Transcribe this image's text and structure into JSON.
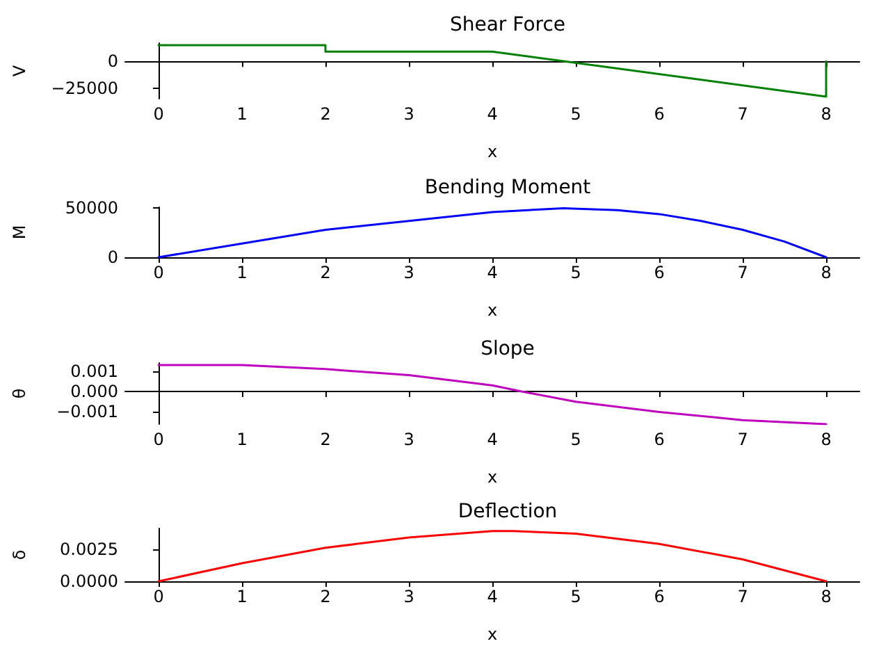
{
  "chart_data": [
    {
      "type": "line",
      "title": "Shear Force",
      "xlabel": "x",
      "ylabel": "V",
      "x": [
        0,
        2,
        2,
        4,
        8,
        8
      ],
      "series": [
        {
          "color": "#008000",
          "values": [
            15000,
            15000,
            9000,
            9000,
            -33000,
            0
          ]
        }
      ],
      "xlim": [
        -0.4,
        8.4
      ],
      "xticks": [
        0,
        1,
        2,
        3,
        4,
        5,
        6,
        7,
        8
      ],
      "ylim": [
        -35000,
        17000
      ],
      "yticks": [
        {
          "value": -25000,
          "label": "−25000"
        },
        0
      ],
      "grid": false
    },
    {
      "type": "line",
      "title": "Bending Moment",
      "xlabel": "x",
      "ylabel": "M",
      "x": [
        0,
        1,
        2,
        3,
        4,
        4.85,
        5.5,
        6,
        6.5,
        7,
        7.5,
        8
      ],
      "series": [
        {
          "color": "#0000ff",
          "values": [
            0,
            14000,
            28000,
            37000,
            46000,
            50000,
            48000,
            44000,
            37000,
            28000,
            16000,
            0
          ]
        }
      ],
      "xlim": [
        -0.4,
        8.4
      ],
      "xticks": [
        0,
        1,
        2,
        3,
        4,
        5,
        6,
        7,
        8
      ],
      "ylim": [
        0,
        51000
      ],
      "yticks": [
        0,
        50000
      ],
      "grid": false
    },
    {
      "type": "line",
      "title": "Slope",
      "xlabel": "x",
      "ylabel": "θ",
      "x": [
        0,
        1,
        2,
        3,
        4,
        4.35,
        5,
        6,
        7,
        8
      ],
      "series": [
        {
          "color": "#bf00bf",
          "values": [
            0.0013,
            0.0013,
            0.0011,
            0.0008,
            0.0003,
            0,
            -0.0005,
            -0.001,
            -0.0014,
            -0.0016
          ]
        }
      ],
      "xlim": [
        -0.4,
        8.4
      ],
      "xticks": [
        0,
        1,
        2,
        3,
        4,
        5,
        6,
        7,
        8
      ],
      "ylim": [
        -0.0016,
        0.0014
      ],
      "yticks": [
        {
          "value": -0.001,
          "label": "−0.001"
        },
        {
          "value": 0,
          "label": "0.000"
        },
        0.001
      ],
      "grid": false
    },
    {
      "type": "line",
      "title": "Deflection",
      "xlabel": "x",
      "ylabel": "δ",
      "x": [
        0,
        1,
        2,
        3,
        4,
        4.25,
        5,
        6,
        7,
        8
      ],
      "series": [
        {
          "color": "#ff0000",
          "values": [
            0,
            0.0014,
            0.0026,
            0.0034,
            0.0039,
            0.0039,
            0.0037,
            0.0029,
            0.0017,
            0
          ]
        }
      ],
      "xlim": [
        -0.4,
        8.4
      ],
      "xticks": [
        0,
        1,
        2,
        3,
        4,
        5,
        6,
        7,
        8
      ],
      "ylim": [
        0,
        0.0041
      ],
      "yticks": [
        {
          "value": 0,
          "label": "0.0000"
        },
        0.0025
      ],
      "grid": false
    }
  ]
}
